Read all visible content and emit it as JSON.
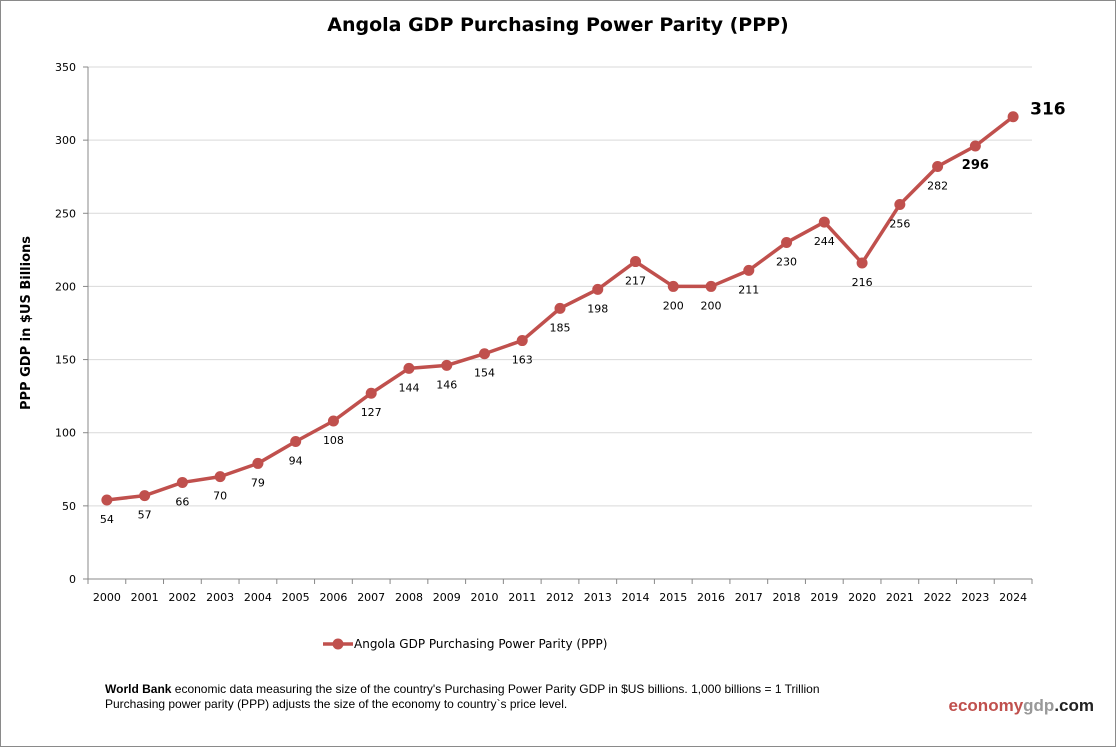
{
  "chart_data": {
    "type": "line",
    "title": "Angola GDP Purchasing Power Parity (PPP)",
    "xlabel": "",
    "ylabel": "PPP GDP in $US Billions",
    "categories": [
      "2000",
      "2001",
      "2002",
      "2003",
      "2004",
      "2005",
      "2006",
      "2007",
      "2008",
      "2009",
      "2010",
      "2011",
      "2012",
      "2013",
      "2014",
      "2015",
      "2016",
      "2017",
      "2018",
      "2019",
      "2020",
      "2021",
      "2022",
      "2023",
      "2024"
    ],
    "series": [
      {
        "name": "Angola GDP Purchasing Power Parity (PPP)",
        "values": [
          54,
          57,
          66,
          70,
          79,
          94,
          108,
          127,
          144,
          146,
          154,
          163,
          185,
          198,
          217,
          200,
          200,
          211,
          230,
          244,
          216,
          256,
          282,
          296,
          316
        ],
        "color": "#c0504d"
      }
    ],
    "ylim": [
      0,
      350
    ],
    "yticks": [
      0,
      50,
      100,
      150,
      200,
      250,
      300,
      350
    ],
    "grid": true,
    "legend": "bottom"
  },
  "footer": {
    "source_bold": "World Bank",
    "line1": " economic data  measuring the size of the country's Purchasing Power Parity GDP in $US billions. 1,000 billions = 1 Trillion",
    "line2": "Purchasing power parity (PPP) adjusts the size of the economy to country`s price level."
  },
  "brand": {
    "part1": "economy",
    "part2": "gdp",
    "part3": ".com",
    "color1": "#c0504d",
    "color2": "#999999",
    "color3": "#222222"
  }
}
